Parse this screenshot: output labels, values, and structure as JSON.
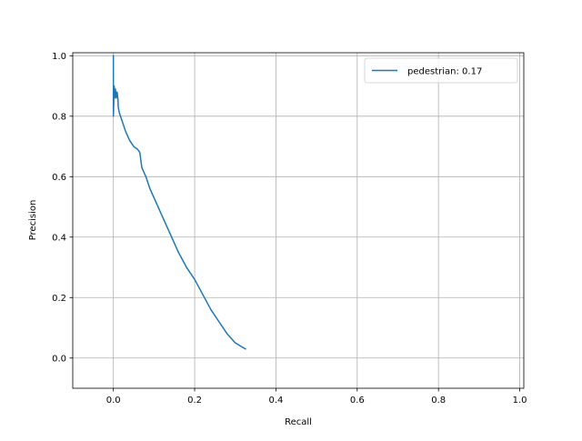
{
  "chart_data": {
    "type": "line",
    "xlabel": "Recall",
    "ylabel": "Precision",
    "xlim": [
      -0.1,
      1.01
    ],
    "ylim": [
      -0.1,
      1.01
    ],
    "xticks": [
      0.0,
      0.2,
      0.4,
      0.6,
      0.8,
      1.0
    ],
    "yticks": [
      0.0,
      0.2,
      0.4,
      0.6,
      0.8,
      1.0
    ],
    "xtick_labels": [
      "0.0",
      "0.2",
      "0.4",
      "0.6",
      "0.8",
      "1.0"
    ],
    "ytick_labels": [
      "0.0",
      "0.2",
      "0.4",
      "0.6",
      "0.8",
      "1.0"
    ],
    "grid": true,
    "legend_position": "top-right",
    "series": [
      {
        "name": "pedestrian: 0.17",
        "color": "#1f77b4",
        "x": [
          0.0,
          0.0,
          0.0,
          0.001,
          0.002,
          0.003,
          0.004,
          0.005,
          0.007,
          0.009,
          0.011,
          0.012,
          0.015,
          0.02,
          0.03,
          0.04,
          0.05,
          0.06,
          0.065,
          0.07,
          0.08,
          0.09,
          0.1,
          0.12,
          0.14,
          0.16,
          0.18,
          0.2,
          0.22,
          0.24,
          0.26,
          0.28,
          0.3,
          0.325
        ],
        "y": [
          1.0,
          0.85,
          0.8,
          0.85,
          0.9,
          0.86,
          0.87,
          0.89,
          0.86,
          0.88,
          0.86,
          0.83,
          0.81,
          0.79,
          0.75,
          0.72,
          0.7,
          0.69,
          0.68,
          0.63,
          0.6,
          0.56,
          0.53,
          0.47,
          0.41,
          0.35,
          0.3,
          0.26,
          0.21,
          0.16,
          0.12,
          0.08,
          0.05,
          0.03
        ]
      }
    ]
  }
}
